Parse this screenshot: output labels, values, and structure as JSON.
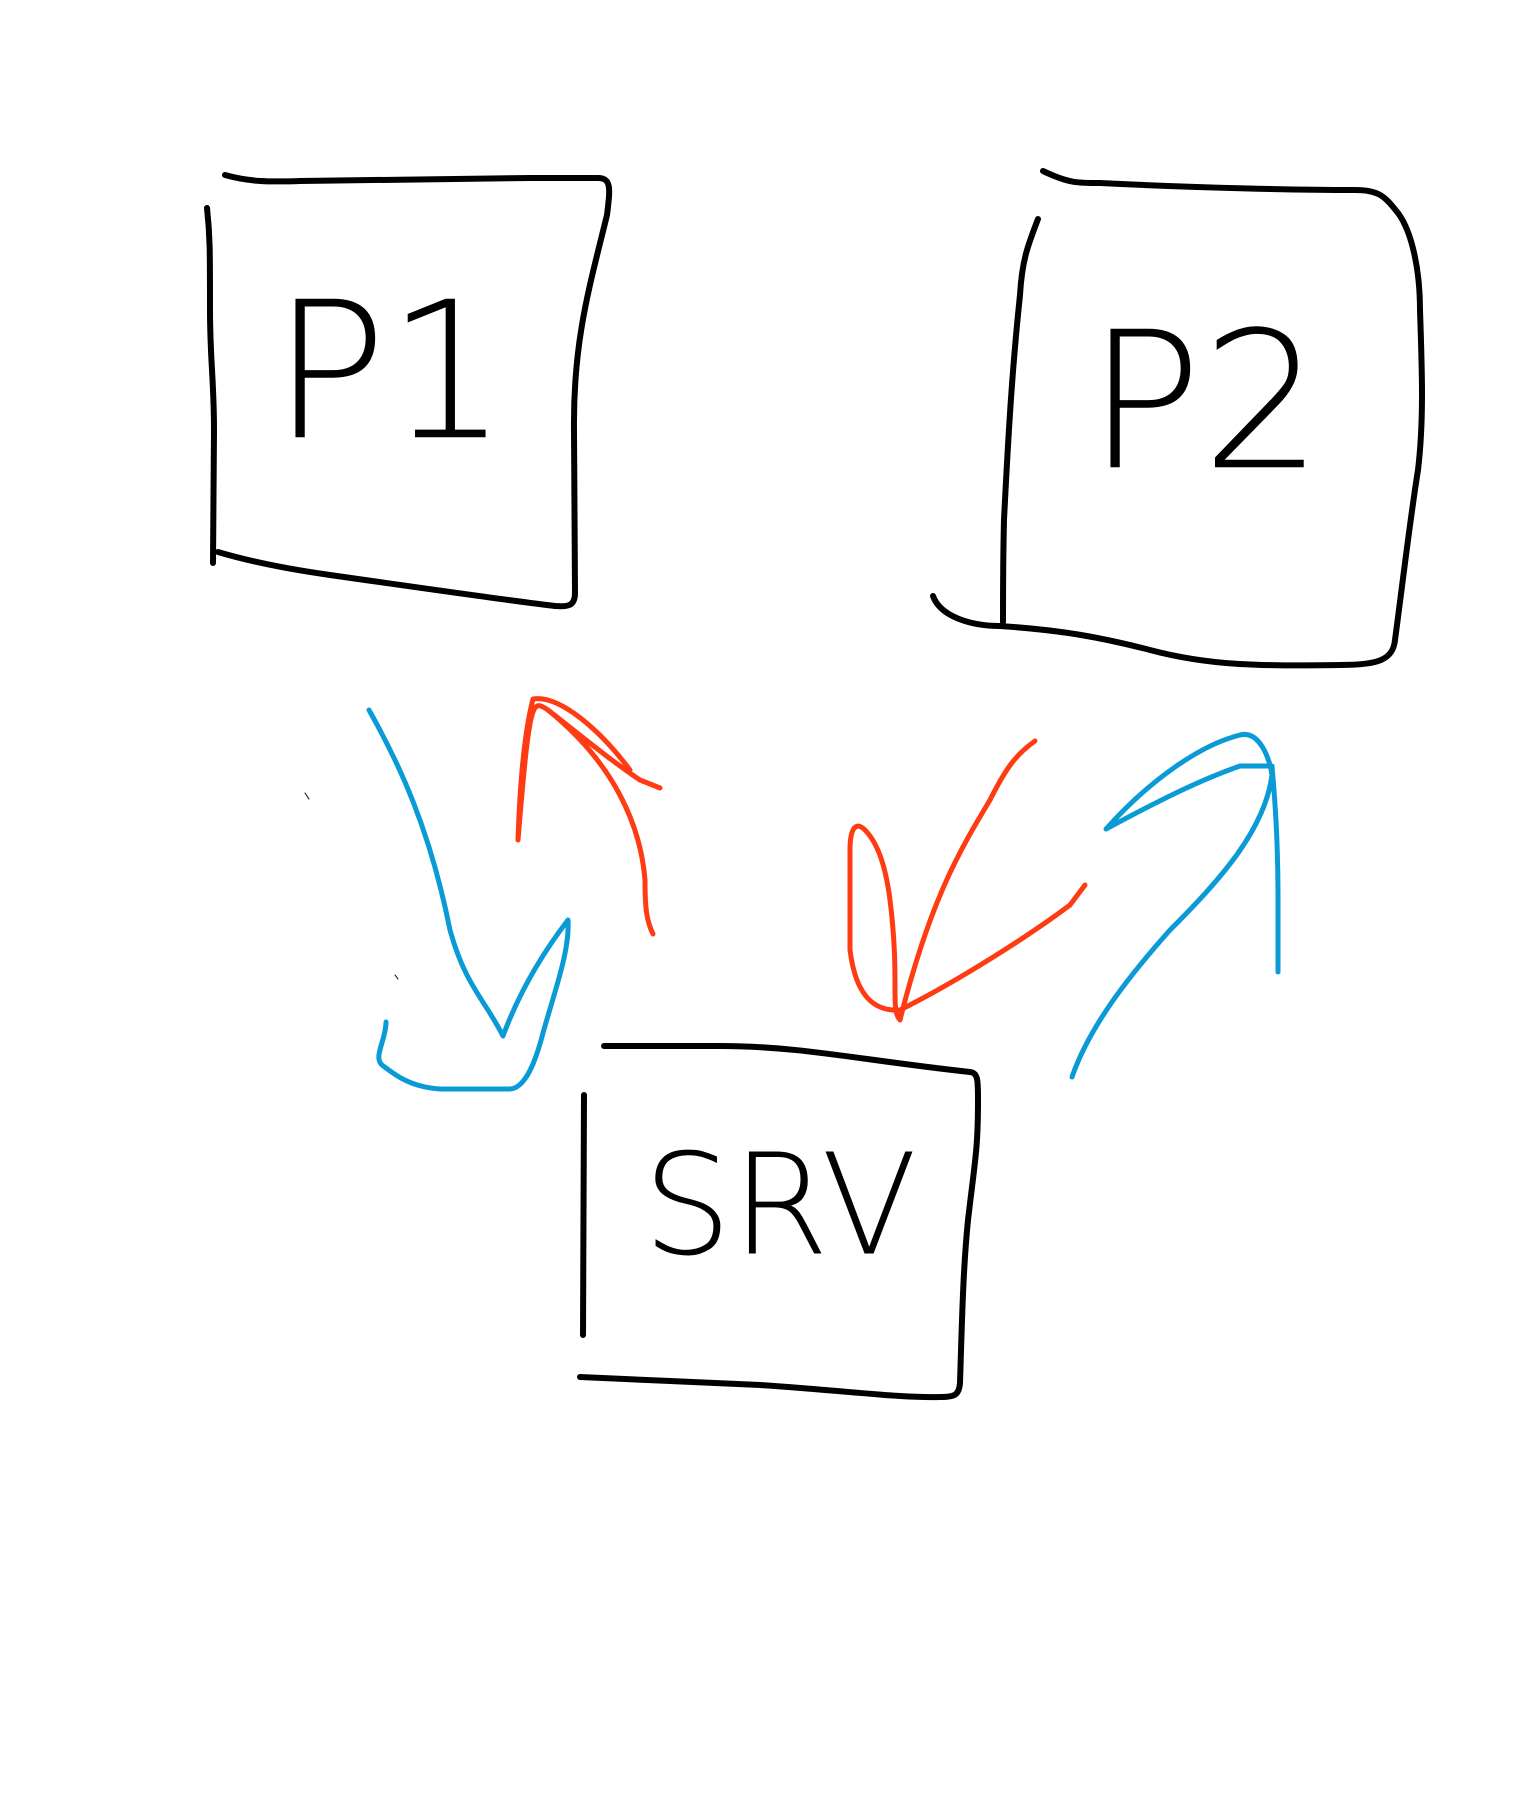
{
  "nodes": [
    {
      "label": "P1"
    },
    {
      "label": "P2"
    },
    {
      "label": "SRV"
    }
  ]
}
